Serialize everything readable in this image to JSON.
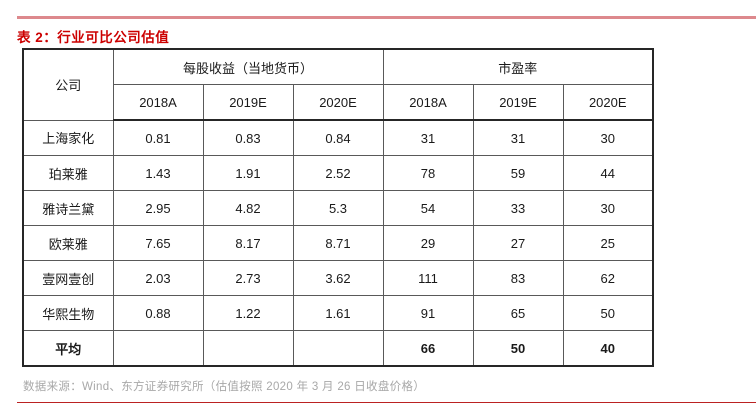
{
  "title": "表 2：行业可比公司估值",
  "table": {
    "corner_header": "公司",
    "group_headers": [
      {
        "label": "每股收益（当地货币）",
        "span": 3
      },
      {
        "label": "市盈率",
        "span": 3
      }
    ],
    "year_headers": [
      "2018A",
      "2019E",
      "2020E",
      "2018A",
      "2019E",
      "2020E"
    ],
    "rows": [
      {
        "company": "上海家化",
        "values": [
          "0.81",
          "0.83",
          "0.84",
          "31",
          "31",
          "30"
        ]
      },
      {
        "company": "珀莱雅",
        "values": [
          "1.43",
          "1.91",
          "2.52",
          "78",
          "59",
          "44"
        ]
      },
      {
        "company": "雅诗兰黛",
        "values": [
          "2.95",
          "4.82",
          "5.3",
          "54",
          "33",
          "30"
        ]
      },
      {
        "company": "欧莱雅",
        "values": [
          "7.65",
          "8.17",
          "8.71",
          "29",
          "27",
          "25"
        ]
      },
      {
        "company": "壹网壹创",
        "values": [
          "2.03",
          "2.73",
          "3.62",
          "111",
          "83",
          "62"
        ]
      },
      {
        "company": "华熙生物",
        "values": [
          "0.88",
          "1.22",
          "1.61",
          "91",
          "65",
          "50"
        ]
      }
    ],
    "summary_row": {
      "company": "平均",
      "values": [
        "",
        "",
        "",
        "66",
        "50",
        "40"
      ]
    }
  },
  "footer": {
    "source_note": "数据来源：Wind、东方证券研究所（估值按照 2020 年 3 月 26 日收盘价格）"
  },
  "colors": {
    "title_red": "#cc0000",
    "top_rule_pink": "#dd898d",
    "bottom_rule_red": "#bb2222",
    "grid_line": "#595959",
    "outer_border": "#262626",
    "source_gray": "#a8a8a8"
  }
}
